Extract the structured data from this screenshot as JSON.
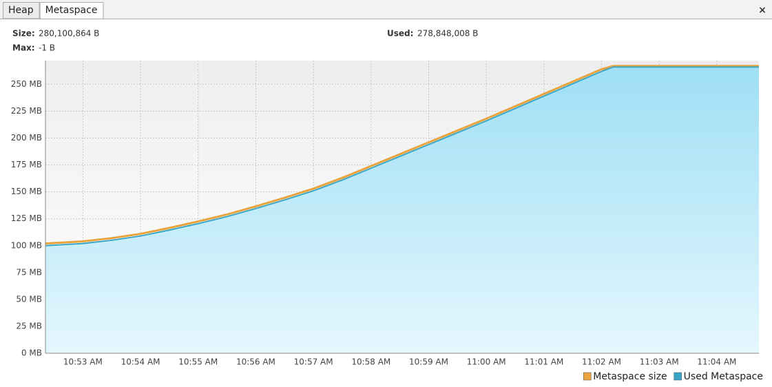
{
  "tabs": [
    "Heap",
    "Metaspace"
  ],
  "selected_tab": 1,
  "close": "×",
  "info": {
    "size": {
      "label": "Size:",
      "value": "280,100,864 B"
    },
    "used": {
      "label": "Used:",
      "value": "278,848,008 B"
    },
    "max": {
      "label": "Max:",
      "value": "-1 B"
    }
  },
  "chart_data": {
    "type": "area",
    "x": [
      652.35,
      653,
      653.5,
      654,
      654.5,
      655,
      655.5,
      656,
      656.5,
      657,
      657.5,
      658,
      658.5,
      659,
      659.5,
      660,
      660.5,
      661,
      661.5,
      662,
      662.2,
      664.73
    ],
    "series": [
      {
        "name": "Metaspace size",
        "color": "#e8a33c",
        "values": [
          102,
          104,
          107,
          111,
          116.5,
          122.5,
          129,
          136.5,
          144.5,
          153,
          163,
          174,
          185,
          196,
          207,
          218,
          229.5,
          241,
          252.5,
          264,
          267,
          267
        ]
      },
      {
        "name": "Used Metaspace",
        "color": "#3aa6c6",
        "values": [
          100,
          102,
          105,
          109,
          114.5,
          120.5,
          127,
          134.5,
          142.5,
          151,
          161,
          172,
          183,
          194,
          205,
          216,
          227.5,
          239,
          250.5,
          262,
          266,
          266
        ]
      }
    ],
    "xlim": [
      652.35,
      664.73
    ],
    "xticks": [
      {
        "value": 653,
        "label": "10:53 AM"
      },
      {
        "value": 654,
        "label": "10:54 AM"
      },
      {
        "value": 655,
        "label": "10:55 AM"
      },
      {
        "value": 656,
        "label": "10:56 AM"
      },
      {
        "value": 657,
        "label": "10:57 AM"
      },
      {
        "value": 658,
        "label": "10:58 AM"
      },
      {
        "value": 659,
        "label": "10:59 AM"
      },
      {
        "value": 660,
        "label": "11:00 AM"
      },
      {
        "value": 661,
        "label": "11:01 AM"
      },
      {
        "value": 662,
        "label": "11:02 AM"
      },
      {
        "value": 663,
        "label": "11:03 AM"
      },
      {
        "value": 664,
        "label": "11:04 AM"
      }
    ],
    "ylim": [
      0,
      272
    ],
    "yticks": [
      {
        "value": 0,
        "label": "0 MB"
      },
      {
        "value": 25,
        "label": "25 MB"
      },
      {
        "value": 50,
        "label": "50 MB"
      },
      {
        "value": 75,
        "label": "75 MB"
      },
      {
        "value": 100,
        "label": "100 MB"
      },
      {
        "value": 125,
        "label": "125 MB"
      },
      {
        "value": 150,
        "label": "150 MB"
      },
      {
        "value": 175,
        "label": "175 MB"
      },
      {
        "value": 200,
        "label": "200 MB"
      },
      {
        "value": 225,
        "label": "225 MB"
      },
      {
        "value": 250,
        "label": "250 MB"
      }
    ],
    "grid": true,
    "legend": "bottom-right"
  }
}
